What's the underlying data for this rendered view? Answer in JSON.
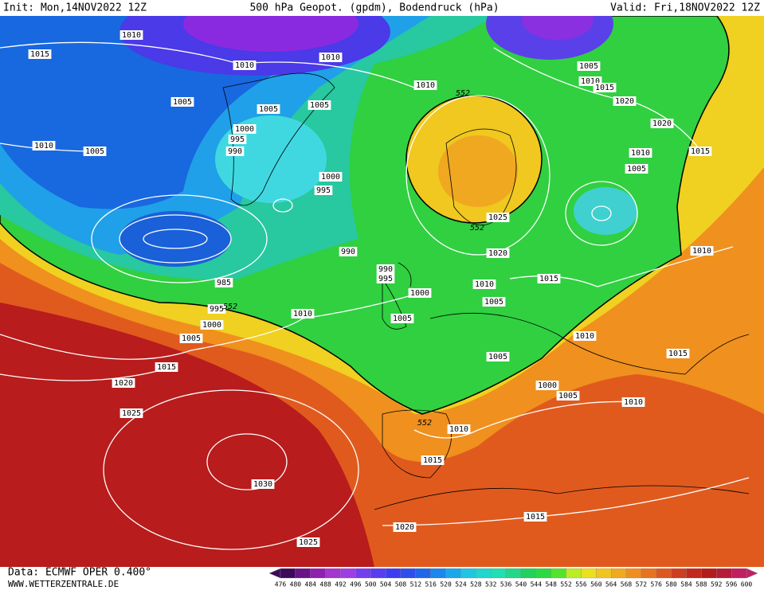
{
  "header": {
    "init": "Init: Mon,14NOV2022 12Z",
    "title": "500 hPa Geopot. (gpdm), Bodendruck (hPa)",
    "valid": "Valid: Fri,18NOV2022 12Z"
  },
  "footer": {
    "source": "Data: ECMWF OPER 0.400°",
    "website": "WWW.WETTERZENTRALE.DE"
  },
  "colorbar": {
    "ticks": [
      476,
      480,
      484,
      488,
      492,
      496,
      500,
      504,
      508,
      512,
      516,
      520,
      524,
      528,
      532,
      536,
      540,
      544,
      548,
      552,
      556,
      560,
      564,
      568,
      572,
      576,
      580,
      584,
      588,
      592,
      596,
      600
    ]
  },
  "isobar_labels": [
    "1010",
    "1015",
    "1010",
    "1010",
    "1010",
    "1005",
    "1005",
    "1005",
    "1005",
    "1010",
    "1015",
    "1020",
    "1020",
    "1010",
    "1005",
    "1000",
    "995",
    "990",
    "1000",
    "995",
    "1010",
    "1005",
    "1015",
    "1025",
    "990",
    "1020",
    "990",
    "995",
    "1015",
    "1010",
    "985",
    "1000",
    "1010",
    "1005",
    "995",
    "1010",
    "1000",
    "1005",
    "1005",
    "1010",
    "1015",
    "1005",
    "1015",
    "1020",
    "1000",
    "1005",
    "1010",
    "1025",
    "1010",
    "1015",
    "1030",
    "1015",
    "1020",
    "1025"
  ],
  "geopotential_labels": [
    "552",
    "552",
    "552",
    "552"
  ]
}
